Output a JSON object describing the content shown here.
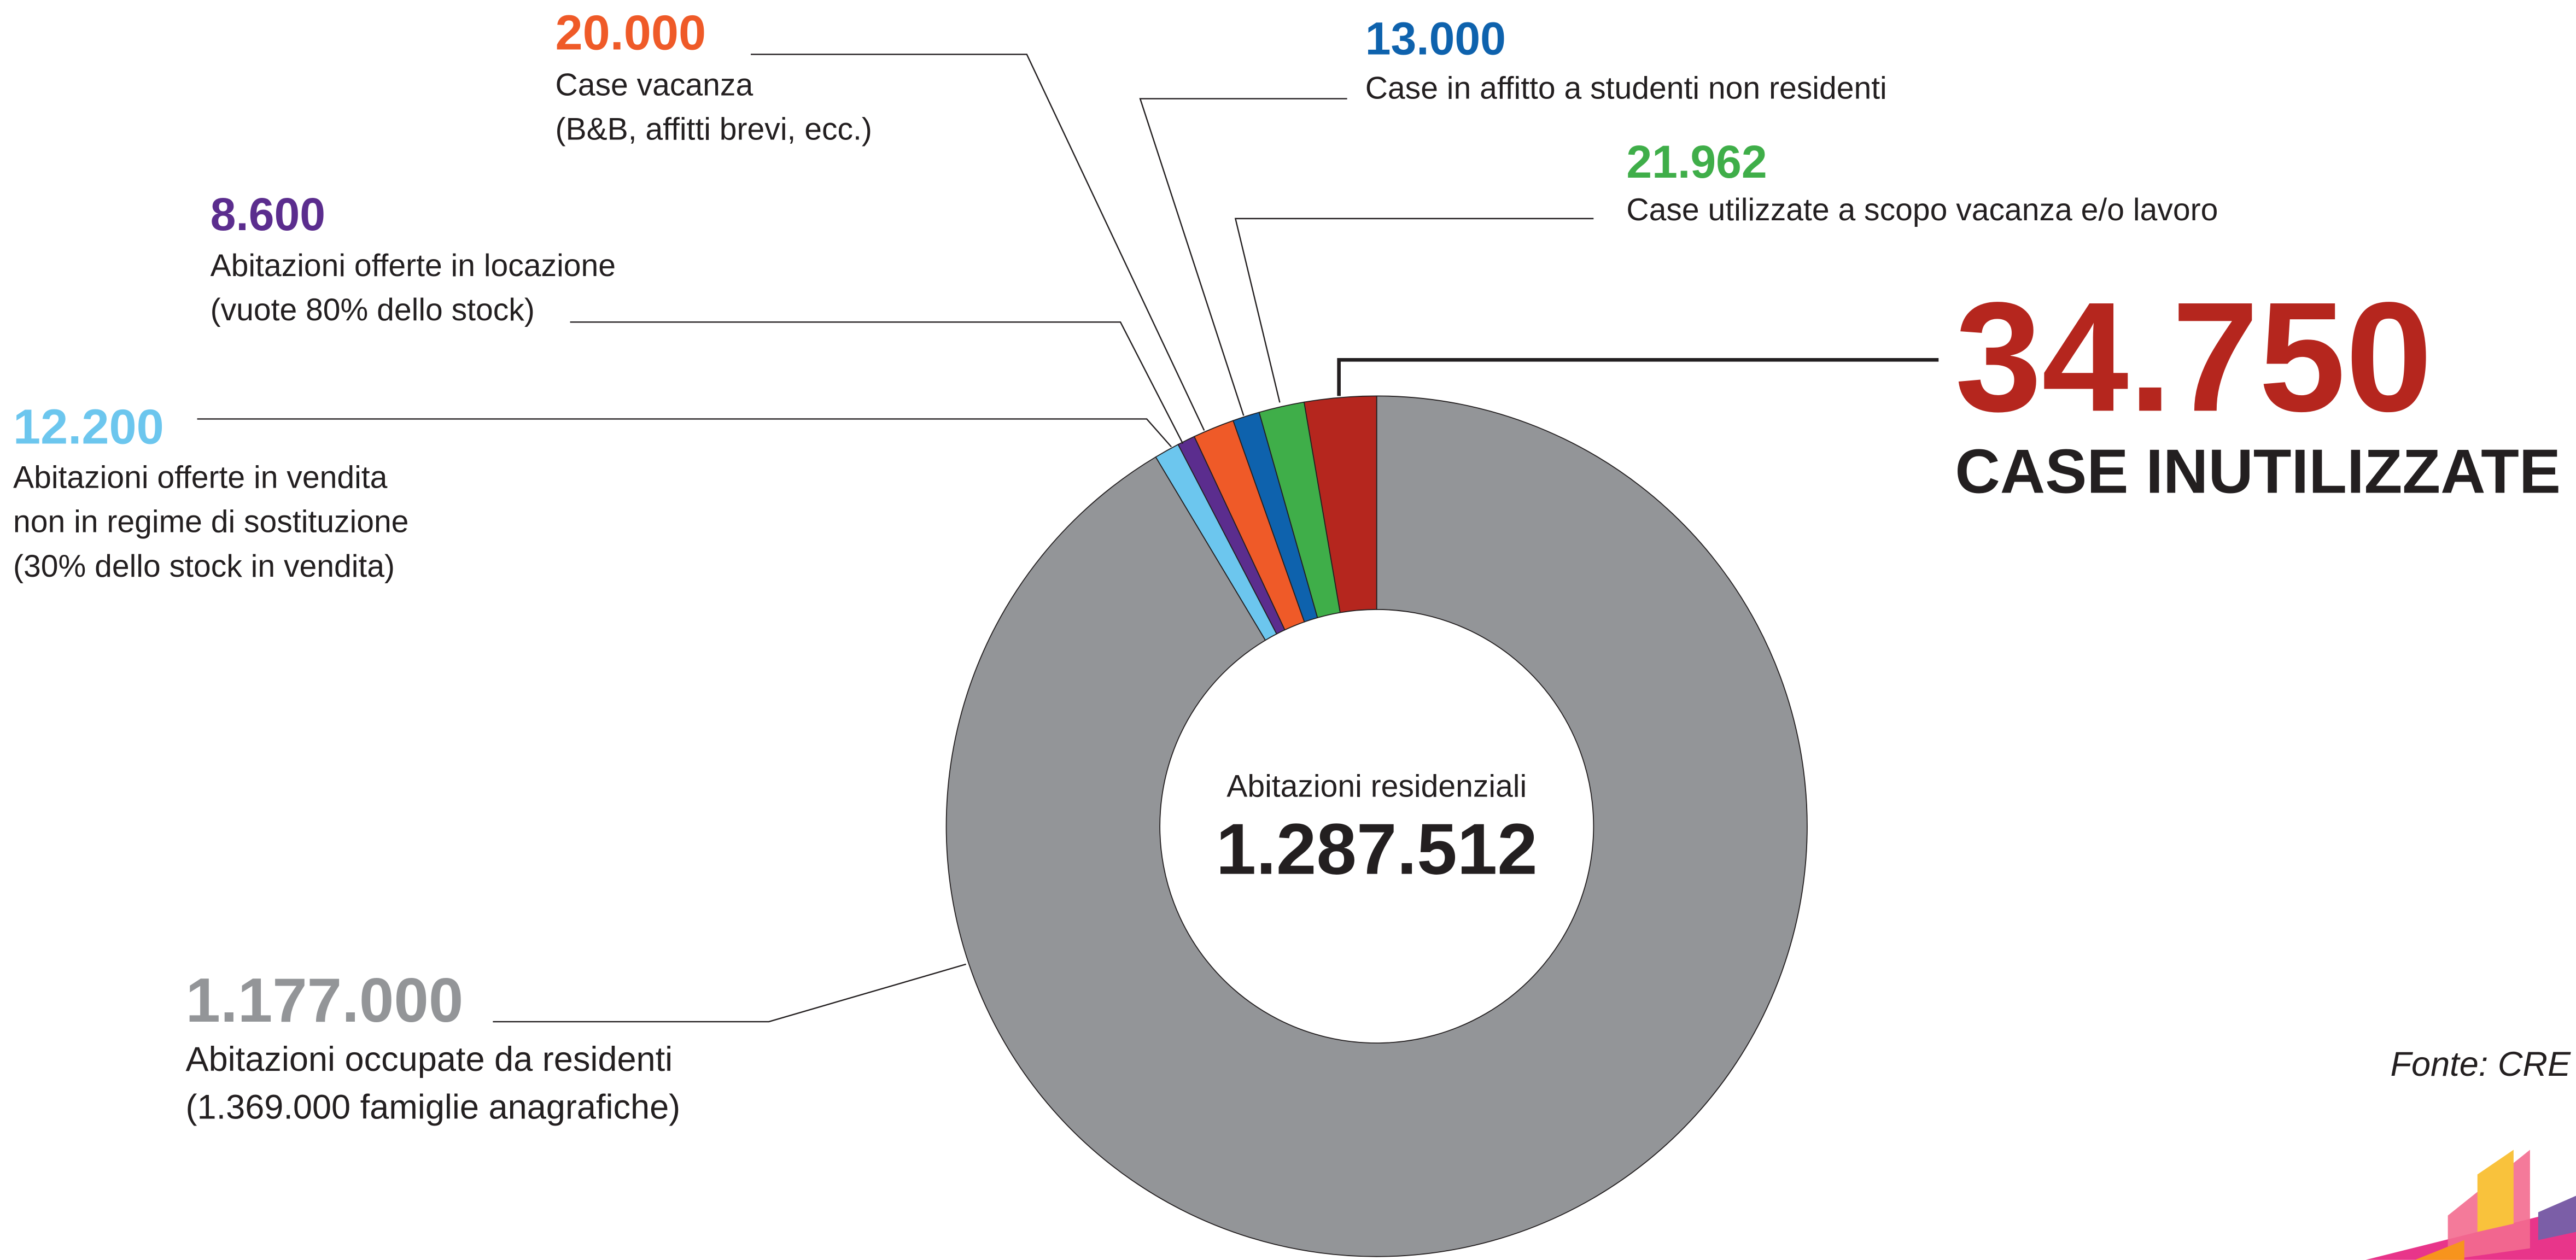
{
  "chart_data": {
    "type": "pie",
    "donut": true,
    "values": [
      34750,
      21962,
      13000,
      20000,
      8600,
      12200,
      1177000
    ],
    "value_labels": [
      "34.750",
      "21.962",
      "13.000",
      "20.000",
      "8.600",
      "12.200",
      "1.177.000"
    ],
    "colors": [
      "#b5261e",
      "#3fae49",
      "#0e62ad",
      "#ef5a28",
      "#5b2d8e",
      "#6cc6ee",
      "#939598"
    ],
    "descriptions": [
      [
        "CASE INUTILIZZATE"
      ],
      [
        "Case utilizzate a scopo vacanza e/o lavoro"
      ],
      [
        "Case in affitto a studenti non residenti"
      ],
      [
        "Case vacanza",
        "(B&B, affitti brevi, ecc.)"
      ],
      [
        "Abitazioni offerte in locazione",
        "(vuote 80% dello stock)"
      ],
      [
        "Abitazioni offerte in vendita",
        "non in regime di sostituzione",
        "(30% dello stock in vendita)"
      ],
      [
        "Abitazioni occupate da residenti",
        "(1.369.000 famiglie anagrafiche)"
      ]
    ],
    "center_title": "Abitazioni residenziali",
    "center_value": 1287512,
    "center_value_label": "1.287.512",
    "source": "Fonte: CRE"
  }
}
